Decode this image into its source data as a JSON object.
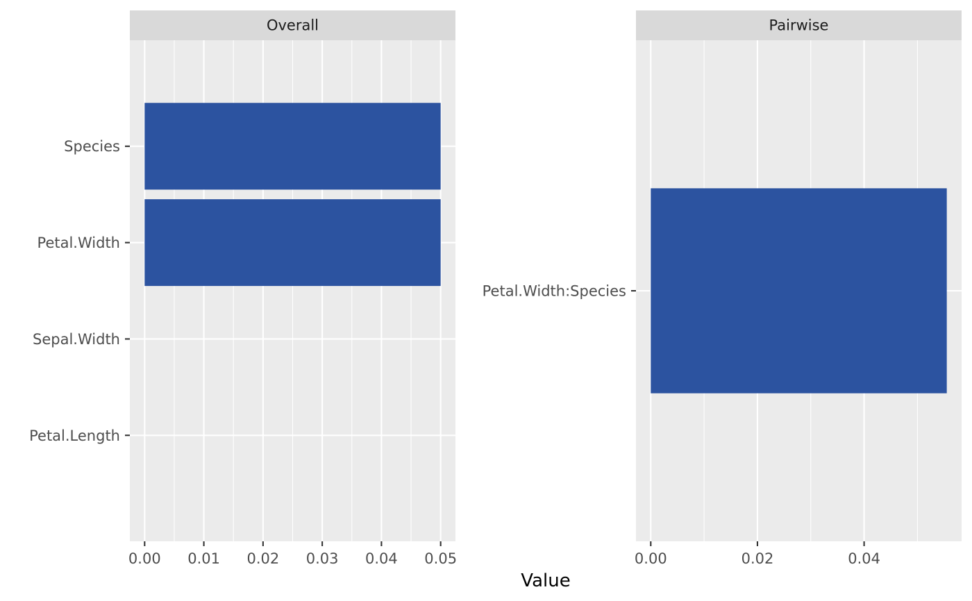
{
  "chart_data": {
    "type": "bar",
    "orientation": "horizontal",
    "xlabel": "Value",
    "ylabel": "",
    "bar_color": "#2c53a0",
    "panel_background": "#ebebeb",
    "strip_background": "#d9d9d9",
    "grid": true,
    "legend": "none",
    "panels": [
      {
        "strip_label": "Overall",
        "categories": [
          "Petal.Length",
          "Sepal.Width",
          "Petal.Width",
          "Species"
        ],
        "values": [
          0,
          0,
          0.05,
          0.05
        ],
        "xlim": [
          -0.0025,
          0.0525
        ],
        "xticks": [
          0.0,
          0.01,
          0.02,
          0.03,
          0.04,
          0.05
        ],
        "xtick_labels": [
          "0.00",
          "0.01",
          "0.02",
          "0.03",
          "0.04",
          "0.05"
        ]
      },
      {
        "strip_label": "Pairwise",
        "categories": [
          "Petal.Width:Species"
        ],
        "values": [
          0.0555
        ],
        "xlim": [
          -0.002775,
          0.058275
        ],
        "xticks": [
          0.0,
          0.02,
          0.04
        ],
        "xtick_labels": [
          "0.00",
          "0.02",
          "0.04"
        ]
      }
    ]
  }
}
